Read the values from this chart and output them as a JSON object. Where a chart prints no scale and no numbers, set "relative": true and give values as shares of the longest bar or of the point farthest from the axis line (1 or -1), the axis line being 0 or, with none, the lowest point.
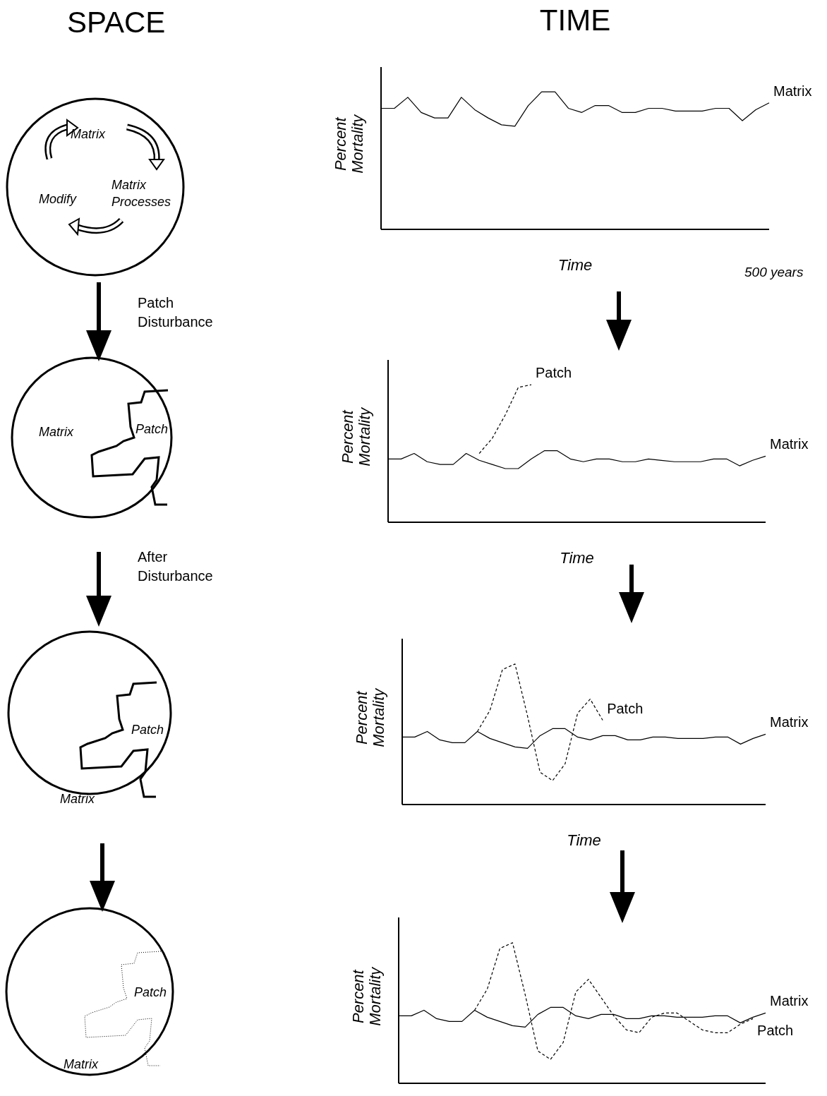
{
  "chart_data": [
    {
      "type": "other",
      "title": "SPACE",
      "annotations": [
        "Matrix",
        "Modify",
        "Matrix Processes",
        "Patch Disturbance",
        "Matrix",
        "Patch",
        "After Disturbance",
        "Patch",
        "Matrix",
        "Patch",
        "Matrix"
      ]
    },
    {
      "type": "line",
      "title": "TIME",
      "xlabel": "Time",
      "ylabel": "Percent Mortality",
      "relative": true,
      "annotations": [
        "500 years"
      ],
      "categories": [
        null,
        null,
        null,
        null,
        null,
        null,
        null,
        null,
        null,
        null,
        null,
        null,
        null,
        null,
        null,
        null,
        null,
        null,
        null,
        null,
        null,
        null,
        null,
        null,
        null,
        null,
        null,
        null,
        null,
        null
      ],
      "series": [
        {
          "name": "Matrix",
          "color": "#000000",
          "line_style": "solid",
          "values": [
            0.88,
            0.88,
            0.96,
            0.85,
            0.81,
            0.81,
            0.96,
            0.87,
            0.81,
            0.76,
            0.75,
            0.9,
            1,
            1,
            0.88,
            0.85,
            0.9,
            0.9,
            0.85,
            0.85,
            0.88,
            0.88,
            0.86,
            0.86,
            0.86,
            0.88,
            0.88,
            0.79,
            0.87,
            0.92
          ]
        }
      ]
    },
    {
      "type": "line",
      "xlabel": "Time",
      "ylabel": "Percent Mortality",
      "relative": true,
      "categories": [
        null,
        null,
        null,
        null,
        null,
        null,
        null,
        null,
        null,
        null,
        null,
        null,
        null,
        null,
        null,
        null,
        null,
        null,
        null,
        null,
        null,
        null,
        null,
        null,
        null,
        null,
        null,
        null,
        null,
        null
      ],
      "series": [
        {
          "name": "Matrix",
          "color": "#000000",
          "line_style": "solid",
          "values": [
            0.46,
            0.46,
            0.5,
            0.44,
            0.42,
            0.42,
            0.5,
            0.45,
            0.42,
            0.39,
            0.39,
            0.46,
            0.52,
            0.52,
            0.46,
            0.44,
            0.46,
            0.46,
            0.44,
            0.44,
            0.46,
            0.45,
            0.44,
            0.44,
            0.44,
            0.46,
            0.46,
            0.41,
            0.45,
            0.48
          ]
        },
        {
          "name": "Patch",
          "color": "#000000",
          "line_style": "dashed",
          "values": [
            null,
            null,
            null,
            null,
            null,
            null,
            null,
            0.5,
            0.61,
            0.78,
            0.98,
            1,
            null,
            null,
            null,
            null,
            null,
            null,
            null,
            null,
            null,
            null,
            null,
            null,
            null,
            null,
            null,
            null,
            null,
            null
          ]
        }
      ]
    },
    {
      "type": "line",
      "xlabel": "Time",
      "ylabel": "Percent Mortality",
      "relative": true,
      "categories": [
        null,
        null,
        null,
        null,
        null,
        null,
        null,
        null,
        null,
        null,
        null,
        null,
        null,
        null,
        null,
        null,
        null,
        null,
        null,
        null,
        null,
        null,
        null,
        null,
        null,
        null,
        null,
        null,
        null,
        null
      ],
      "series": [
        {
          "name": "Matrix",
          "color": "#000000",
          "line_style": "solid",
          "values": [
            0.48,
            0.48,
            0.52,
            0.46,
            0.44,
            0.44,
            0.52,
            0.47,
            0.44,
            0.41,
            0.4,
            0.49,
            0.54,
            0.54,
            0.48,
            0.46,
            0.49,
            0.49,
            0.46,
            0.46,
            0.48,
            0.48,
            0.47,
            0.47,
            0.47,
            0.48,
            0.48,
            0.43,
            0.47,
            0.5
          ]
        },
        {
          "name": "Patch",
          "color": "#000000",
          "line_style": "dashed",
          "values": [
            null,
            null,
            null,
            null,
            null,
            null,
            0.52,
            0.67,
            0.96,
            1,
            0.63,
            0.23,
            0.17,
            0.29,
            0.65,
            0.75,
            0.6,
            null,
            null,
            null,
            null,
            null,
            null,
            null,
            null,
            null,
            null,
            null,
            null,
            null
          ]
        }
      ]
    },
    {
      "type": "line",
      "ylabel": "Percent Mortality",
      "relative": true,
      "categories": [
        null,
        null,
        null,
        null,
        null,
        null,
        null,
        null,
        null,
        null,
        null,
        null,
        null,
        null,
        null,
        null,
        null,
        null,
        null,
        null,
        null,
        null,
        null,
        null,
        null,
        null,
        null,
        null,
        null,
        null
      ],
      "series": [
        {
          "name": "Matrix",
          "color": "#000000",
          "line_style": "solid",
          "values": [
            0.48,
            0.48,
            0.52,
            0.46,
            0.44,
            0.44,
            0.52,
            0.47,
            0.44,
            0.41,
            0.4,
            0.49,
            0.54,
            0.54,
            0.48,
            0.46,
            0.49,
            0.49,
            0.46,
            0.46,
            0.48,
            0.48,
            0.47,
            0.47,
            0.47,
            0.48,
            0.48,
            0.43,
            0.47,
            0.5
          ]
        },
        {
          "name": "Patch",
          "color": "#000000",
          "line_style": "dashed",
          "values": [
            null,
            null,
            null,
            null,
            null,
            null,
            0.52,
            0.67,
            0.96,
            1,
            0.63,
            0.23,
            0.17,
            0.29,
            0.65,
            0.74,
            0.61,
            0.48,
            0.38,
            0.36,
            0.47,
            0.5,
            0.5,
            0.44,
            0.38,
            0.36,
            0.36,
            0.42,
            0.46,
            null
          ]
        }
      ]
    }
  ]
}
